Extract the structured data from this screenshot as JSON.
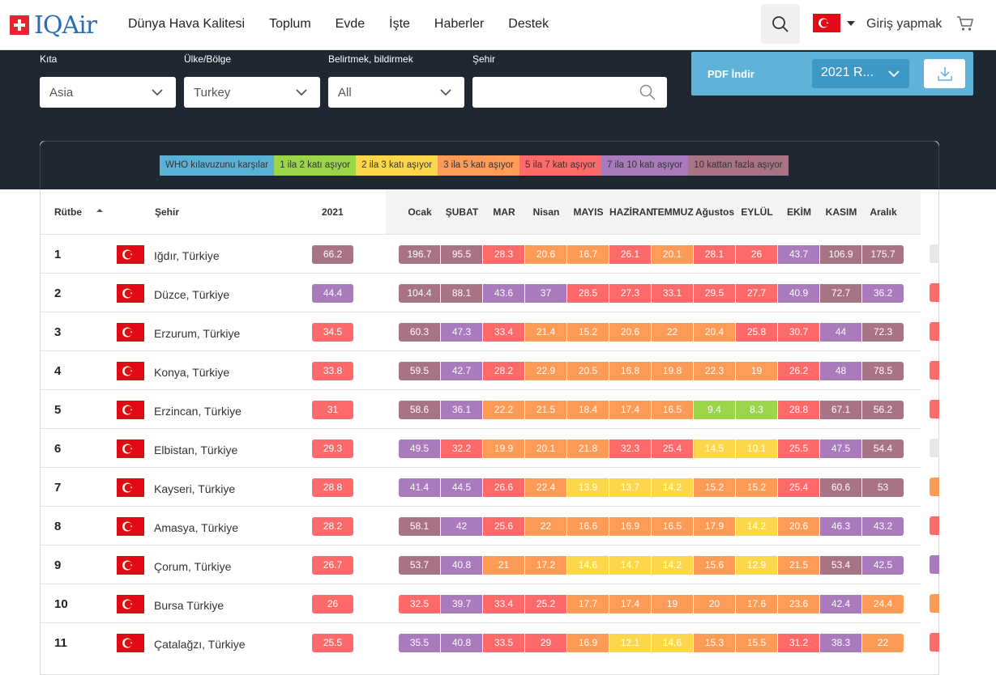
{
  "header": {
    "logo_text": "IQAir",
    "nav": [
      "Dünya Hava Kalitesi",
      "Toplum",
      "Evde",
      "İşte",
      "Haberler",
      "Destek"
    ],
    "login": "Giriş yapmak"
  },
  "filters": {
    "continent_label": "Kıta",
    "continent_value": "Asia",
    "country_label": "Ülke/Bölge",
    "country_value": "Turkey",
    "state_label": "Belirtmek, bildirmek",
    "state_value": "All",
    "city_label": "Şehir",
    "city_value": ""
  },
  "pdf": {
    "label": "PDF İndir",
    "selected": "2021 R..."
  },
  "legend": [
    {
      "label": "WHO kılavuzunu karşılar",
      "color": "#5ab1d6"
    },
    {
      "label": "1 ila 2 katı aşıyor",
      "color": "#9bd54a"
    },
    {
      "label": "2 ila 3 katı aşıyor",
      "color": "#fdd74b"
    },
    {
      "label": "3 ila 5 katı aşıyor",
      "color": "#fe9b57"
    },
    {
      "label": "5 ila 7 katı aşıyor",
      "color": "#fe6a69"
    },
    {
      "label": "7 ila 10 katı aşıyor",
      "color": "#a97abc"
    },
    {
      "label": "10 kattan fazla aşıyor",
      "color": "#a87383"
    }
  ],
  "table": {
    "col_rank": "Rütbe",
    "col_city": "Şehir",
    "col_year": "2021",
    "months": [
      "Ocak",
      "ŞUBAT",
      "MAR",
      "Nisan",
      "MAYIS",
      "HAZİRAN",
      "TEMMUZ",
      "Ağustos",
      "EYLÜL",
      "EKİM",
      "KASIM",
      "Aralık"
    ],
    "rows": [
      {
        "rank": "1",
        "city": "Iğdır, Türkiye",
        "year": "66.2",
        "months": [
          "196.7",
          "95.5",
          "28.3",
          "20.6",
          "16.7",
          "26.1",
          "20.1",
          "28.1",
          "26",
          "43.7",
          "106.9",
          "175.7"
        ],
        "edge": "#e6e6e6"
      },
      {
        "rank": "2",
        "city": "Düzce, Türkiye",
        "year": "44.4",
        "months": [
          "104.4",
          "88.1",
          "43.6",
          "37",
          "28.5",
          "27.3",
          "33.1",
          "29.5",
          "27.7",
          "40.9",
          "72.7",
          "36.2"
        ],
        "edge": "#fe6a69"
      },
      {
        "rank": "3",
        "city": "Erzurum, Türkiye",
        "year": "34.5",
        "months": [
          "60.3",
          "47.3",
          "33.4",
          "21.4",
          "15.2",
          "20.6",
          "22",
          "20.4",
          "25.8",
          "30.7",
          "44",
          "72.3"
        ],
        "edge": "#fe6a69"
      },
      {
        "rank": "4",
        "city": "Konya, Türkiye",
        "year": "33.8",
        "months": [
          "59.5",
          "42.7",
          "28.2",
          "22.9",
          "20.5",
          "16.8",
          "19.8",
          "22.3",
          "19",
          "26.2",
          "48",
          "78.5"
        ],
        "edge": "#fe6a69"
      },
      {
        "rank": "5",
        "city": "Erzincan, Türkiye",
        "year": "31",
        "months": [
          "58.6",
          "36.1",
          "22.2",
          "21.5",
          "18.4",
          "17.4",
          "16.5",
          "9.4",
          "8.3",
          "28.8",
          "67.1",
          "56.2"
        ],
        "edge": "#fe6a69"
      },
      {
        "rank": "6",
        "city": "Elbistan, Türkiye",
        "year": "29.3",
        "months": [
          "49.5",
          "32.2",
          "19.9",
          "20.1",
          "21.8",
          "32.3",
          "25.4",
          "14.5",
          "10.1",
          "25.5",
          "47.5",
          "54.4"
        ],
        "edge": "#e6e6e6"
      },
      {
        "rank": "7",
        "city": "Kayseri, Türkiye",
        "year": "28.8",
        "months": [
          "41.4",
          "44.5",
          "26.6",
          "22.4",
          "13.9",
          "13.7",
          "14.2",
          "15.2",
          "15.2",
          "25.4",
          "60.6",
          "53"
        ],
        "edge": "#fe9b57"
      },
      {
        "rank": "8",
        "city": "Amasya, Türkiye",
        "year": "28.2",
        "months": [
          "58.1",
          "42",
          "25.6",
          "22",
          "16.6",
          "16.9",
          "16.5",
          "17.9",
          "14.2",
          "20.6",
          "46.3",
          "43.2"
        ],
        "edge": "#fe6a69"
      },
      {
        "rank": "9",
        "city": "Çorum, Türkiye",
        "year": "26.7",
        "months": [
          "53.7",
          "40.8",
          "21",
          "17.2",
          "14.6",
          "14.7",
          "14.2",
          "15.6",
          "12.9",
          "21.5",
          "53.4",
          "42.5"
        ],
        "edge": "#a97abc"
      },
      {
        "rank": "10",
        "city": "Bursa Türkiye",
        "year": "26",
        "months": [
          "32.5",
          "39.7",
          "33.4",
          "25.2",
          "17.7",
          "17.4",
          "19",
          "20",
          "17.6",
          "23.6",
          "42.4",
          "24.4"
        ],
        "edge": "#fe9b57"
      },
      {
        "rank": "11",
        "city": "Çatalağzı, Türkiye",
        "year": "25.5",
        "months": [
          "35.5",
          "40.8",
          "33.5",
          "29",
          "16.9",
          "12.1",
          "14.6",
          "15.3",
          "15.5",
          "31.2",
          "38.3",
          "22"
        ],
        "edge": "#fe6a69"
      }
    ]
  }
}
